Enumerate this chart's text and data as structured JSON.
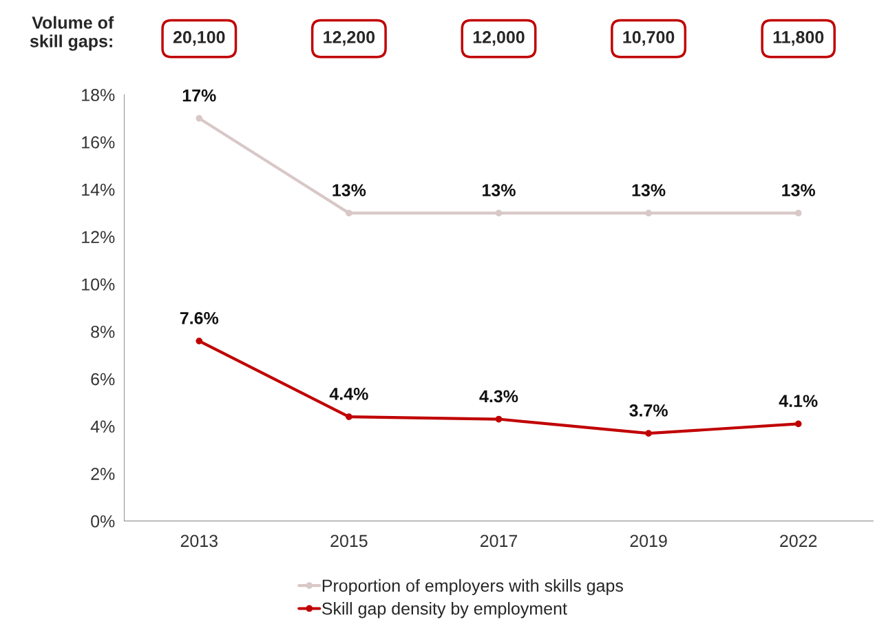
{
  "chart_data": {
    "type": "line",
    "categories": [
      "2013",
      "2015",
      "2017",
      "2019",
      "2022"
    ],
    "series": [
      {
        "name": "Proportion of employers with skills gaps",
        "color": "#d9c8c8",
        "values": [
          17,
          13,
          13,
          13,
          13
        ],
        "value_labels": [
          "17%",
          "13%",
          "13%",
          "13%",
          "13%"
        ]
      },
      {
        "name": "Skill gap density by employment",
        "color": "#c00000",
        "values": [
          7.6,
          4.4,
          4.3,
          3.7,
          4.1
        ],
        "value_labels": [
          "7.6%",
          "4.4%",
          "4.3%",
          "3.7%",
          "4.1%"
        ]
      }
    ],
    "ylim": [
      0,
      18
    ],
    "yticks": [
      {
        "value": 0,
        "label": "0%"
      },
      {
        "value": 2,
        "label": "2%"
      },
      {
        "value": 4,
        "label": "4%"
      },
      {
        "value": 6,
        "label": "6%"
      },
      {
        "value": 8,
        "label": "8%"
      },
      {
        "value": 10,
        "label": "10%"
      },
      {
        "value": 12,
        "label": "12%"
      },
      {
        "value": 14,
        "label": "14%"
      },
      {
        "value": 16,
        "label": "16%"
      },
      {
        "value": 18,
        "label": "18%"
      }
    ],
    "annotations": [
      "Volume of\nskill gaps:",
      "20,100",
      "12,200",
      "12,000",
      "10,700",
      "11,800"
    ],
    "legend": "bottom",
    "grid": false,
    "marker": "circle",
    "line_style": "solid"
  }
}
